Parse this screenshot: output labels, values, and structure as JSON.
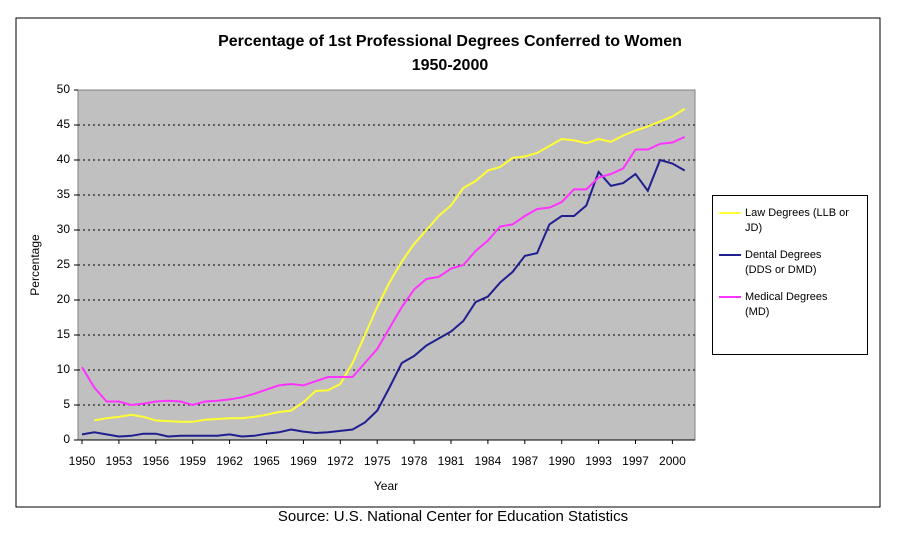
{
  "chart_data": {
    "type": "line",
    "title": "Percentage of 1st Professional Degrees Conferred to Women",
    "subtitle": "1950-2000",
    "x_label": "Year",
    "y_label": "Percentage",
    "source": "Source: U.S. National Center for Education Statistics",
    "categories": [
      "1950",
      null,
      null,
      "1953",
      null,
      null,
      "1956",
      null,
      null,
      "1959",
      null,
      null,
      "1962",
      null,
      null,
      "1965",
      null,
      null,
      "1969",
      null,
      null,
      "1972",
      null,
      null,
      "1975",
      null,
      null,
      "1978",
      null,
      null,
      "1981",
      null,
      null,
      "1984",
      null,
      null,
      "1987",
      null,
      null,
      "1990",
      null,
      null,
      "1993",
      null,
      null,
      "1997",
      null,
      null,
      "2000",
      null
    ],
    "series": [
      {
        "name": "Law Degrees (LLB or JD)",
        "color": "#ffff33",
        "values": [
          null,
          2.8,
          3.1,
          3.3,
          3.6,
          3.3,
          2.8,
          2.7,
          2.6,
          2.6,
          2.9,
          3.0,
          3.1,
          3.1,
          3.3,
          3.6,
          4.0,
          4.2,
          5.4,
          7.0,
          7.1,
          8.0,
          11.0,
          15.0,
          19.0,
          22.5,
          25.5,
          28.0,
          30.0,
          32.0,
          33.5,
          36.0,
          37.0,
          38.5,
          39.0,
          40.3,
          40.5,
          41.0,
          42.0,
          43.0,
          42.8,
          42.4,
          43.0,
          42.6,
          43.5,
          44.2,
          44.8,
          45.5,
          46.2,
          47.3
        ]
      },
      {
        "name": "Dental Degrees (DDS or DMD)",
        "color": "#1f1f8f",
        "values": [
          0.8,
          1.1,
          0.8,
          0.5,
          0.6,
          0.9,
          0.9,
          0.5,
          0.6,
          0.6,
          0.6,
          0.6,
          0.8,
          0.5,
          0.6,
          0.9,
          1.1,
          1.5,
          1.2,
          1.0,
          1.1,
          1.3,
          1.5,
          2.5,
          4.2,
          7.5,
          11.0,
          12.0,
          13.5,
          14.5,
          15.5,
          17.0,
          19.7,
          20.5,
          22.5,
          24.0,
          26.3,
          26.7,
          30.8,
          32.0,
          32.0,
          33.5,
          38.3,
          36.3,
          36.7,
          38.0,
          35.6,
          40.0,
          39.5,
          38.5
        ]
      },
      {
        "name": "Medical Degrees (MD)",
        "color": "#ff33ff",
        "values": [
          10.4,
          7.5,
          5.5,
          5.5,
          5.0,
          5.2,
          5.5,
          5.6,
          5.5,
          5.0,
          5.5,
          5.6,
          5.8,
          6.1,
          6.6,
          7.2,
          7.8,
          8.0,
          7.8,
          8.4,
          9.0,
          9.0,
          9.0,
          11.0,
          13.0,
          16.0,
          19.0,
          21.5,
          23.0,
          23.3,
          24.5,
          25.0,
          27.0,
          28.5,
          30.5,
          30.8,
          32.0,
          33.0,
          33.2,
          34.0,
          35.8,
          35.8,
          37.5,
          38.0,
          38.8,
          41.5,
          41.5,
          42.3,
          42.5,
          43.3
        ]
      }
    ],
    "ylim": [
      0,
      50
    ],
    "yticks": [
      0,
      5,
      10,
      15,
      20,
      25,
      30,
      35,
      40,
      45,
      50
    ],
    "grid": true,
    "legend": "right",
    "plot_background": "#c0c0c0"
  }
}
